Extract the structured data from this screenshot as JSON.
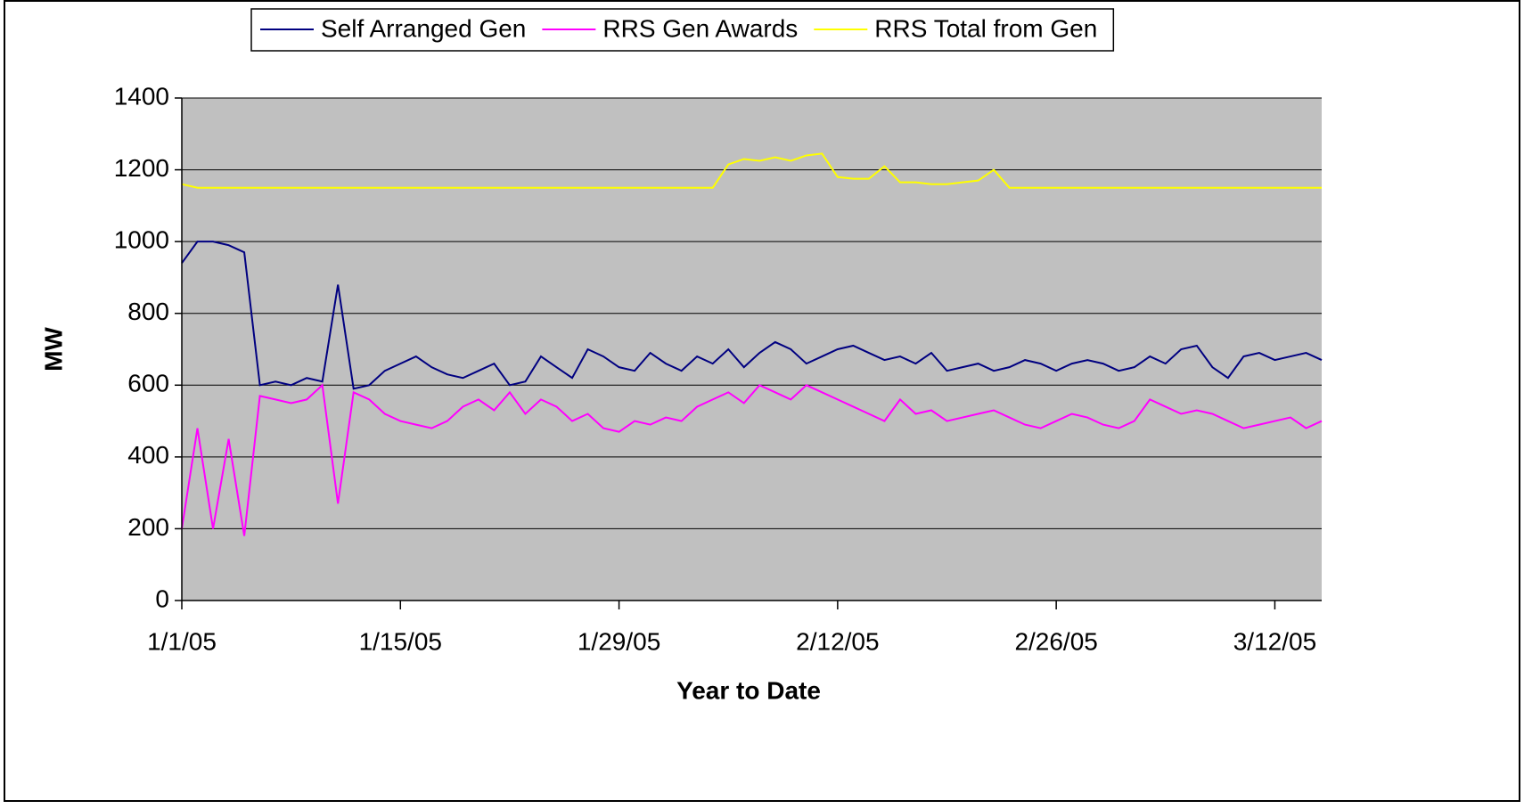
{
  "chart_data": {
    "type": "line",
    "x_label": "Year to Date",
    "y_label": "MW",
    "legend": "top",
    "grid": true,
    "x": [
      "1/1/05",
      "1/2/05",
      "1/3/05",
      "1/4/05",
      "1/5/05",
      "1/6/05",
      "1/7/05",
      "1/8/05",
      "1/9/05",
      "1/10/05",
      "1/11/05",
      "1/12/05",
      "1/13/05",
      "1/14/05",
      "1/15/05",
      "1/16/05",
      "1/17/05",
      "1/18/05",
      "1/19/05",
      "1/20/05",
      "1/21/05",
      "1/22/05",
      "1/23/05",
      "1/24/05",
      "1/25/05",
      "1/26/05",
      "1/27/05",
      "1/28/05",
      "1/29/05",
      "1/30/05",
      "1/31/05",
      "2/1/05",
      "2/2/05",
      "2/3/05",
      "2/4/05",
      "2/5/05",
      "2/6/05",
      "2/7/05",
      "2/8/05",
      "2/9/05",
      "2/10/05",
      "2/11/05",
      "2/12/05",
      "2/13/05",
      "2/14/05",
      "2/15/05",
      "2/16/05",
      "2/17/05",
      "2/18/05",
      "2/19/05",
      "2/20/05",
      "2/21/05",
      "2/22/05",
      "2/23/05",
      "2/24/05",
      "2/25/05",
      "2/26/05",
      "2/27/05",
      "2/28/05",
      "3/1/05",
      "3/2/05",
      "3/3/05",
      "3/4/05",
      "3/5/05",
      "3/6/05",
      "3/7/05",
      "3/8/05",
      "3/9/05",
      "3/10/05",
      "3/11/05",
      "3/12/05",
      "3/13/05",
      "3/14/05",
      "3/15/05"
    ],
    "xlim": [
      "1/1/05",
      "3/15/05"
    ],
    "xticks": [
      "1/1/05",
      "1/15/05",
      "1/29/05",
      "2/12/05",
      "2/26/05",
      "3/12/05"
    ],
    "ylim": [
      0,
      1400
    ],
    "yticks": [
      0,
      200,
      400,
      600,
      800,
      1000,
      1200,
      1400
    ],
    "series": [
      {
        "name": "Self Arranged Gen",
        "color": "#000080",
        "values": [
          940,
          1000,
          1000,
          990,
          970,
          600,
          610,
          600,
          620,
          610,
          880,
          590,
          600,
          640,
          660,
          680,
          650,
          630,
          620,
          640,
          660,
          600,
          610,
          680,
          650,
          620,
          700,
          680,
          650,
          640,
          690,
          660,
          640,
          680,
          660,
          700,
          650,
          690,
          720,
          700,
          660,
          680,
          700,
          710,
          690,
          670,
          680,
          660,
          690,
          640,
          650,
          660,
          640,
          650,
          670,
          660,
          640,
          660,
          670,
          660,
          640,
          650,
          680,
          660,
          700,
          710,
          650,
          620,
          680,
          690,
          670,
          680,
          690,
          670
        ]
      },
      {
        "name": "RRS Gen Awards",
        "color": "#ff00ff",
        "values": [
          200,
          480,
          200,
          450,
          180,
          570,
          560,
          550,
          560,
          600,
          270,
          580,
          560,
          520,
          500,
          490,
          480,
          500,
          540,
          560,
          530,
          580,
          520,
          560,
          540,
          500,
          520,
          480,
          470,
          500,
          490,
          510,
          500,
          540,
          560,
          580,
          550,
          600,
          580,
          560,
          600,
          580,
          560,
          540,
          520,
          500,
          560,
          520,
          530,
          500,
          510,
          520,
          530,
          510,
          490,
          480,
          500,
          520,
          510,
          490,
          480,
          500,
          560,
          540,
          520,
          530,
          520,
          500,
          480,
          490,
          500,
          510,
          480,
          500
        ]
      },
      {
        "name": "RRS Total from Gen",
        "color": "#ffff00",
        "values": [
          1160,
          1150,
          1150,
          1150,
          1150,
          1150,
          1150,
          1150,
          1150,
          1150,
          1150,
          1150,
          1150,
          1150,
          1150,
          1150,
          1150,
          1150,
          1150,
          1150,
          1150,
          1150,
          1150,
          1150,
          1150,
          1150,
          1150,
          1150,
          1150,
          1150,
          1150,
          1150,
          1150,
          1150,
          1150,
          1215,
          1230,
          1225,
          1235,
          1225,
          1240,
          1245,
          1180,
          1175,
          1175,
          1210,
          1165,
          1165,
          1160,
          1160,
          1165,
          1170,
          1200,
          1150,
          1150,
          1150,
          1150,
          1150,
          1150,
          1150,
          1150,
          1150,
          1150,
          1150,
          1150,
          1150,
          1150,
          1150,
          1150,
          1150,
          1150,
          1150,
          1150,
          1150
        ]
      }
    ]
  }
}
